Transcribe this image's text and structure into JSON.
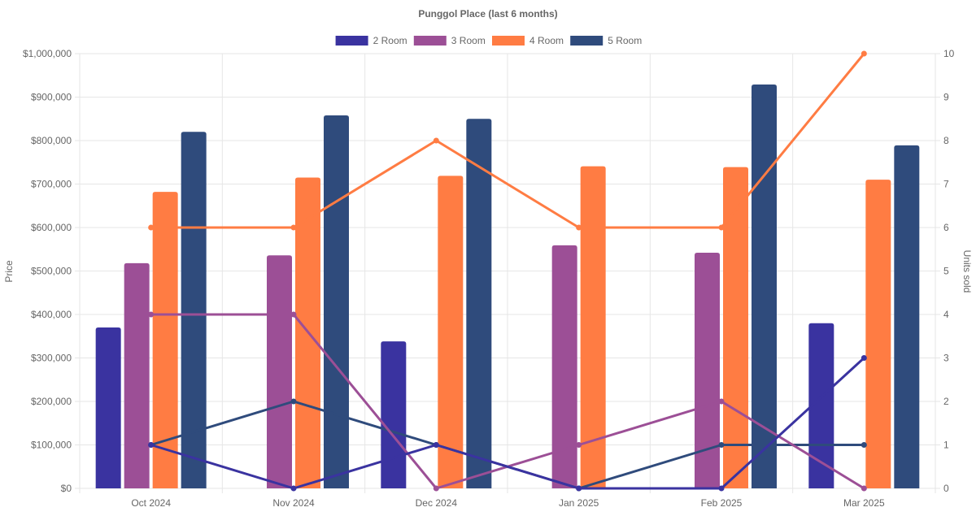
{
  "chart_data": {
    "type": "bar+line",
    "title": "Punggol Place (last 6 months)",
    "categories": [
      "Oct 2024",
      "Nov 2024",
      "Dec 2024",
      "Jan 2025",
      "Feb 2025",
      "Mar 2025"
    ],
    "ylabel_left": "Price",
    "ylabel_right": "Units sold",
    "ylim_left": [
      0,
      1000000
    ],
    "ylim_right": [
      0,
      10
    ],
    "yticks_left": [
      "$0",
      "$100,000",
      "$200,000",
      "$300,000",
      "$400,000",
      "$500,000",
      "$600,000",
      "$700,000",
      "$800,000",
      "$900,000",
      "$1,000,000"
    ],
    "yticks_right": [
      "0",
      "1",
      "2",
      "3",
      "4",
      "5",
      "6",
      "7",
      "8",
      "9",
      "10"
    ],
    "legend_position": "top-center",
    "grid": true,
    "series": [
      {
        "name": "2 Room",
        "color": "#3a33a0",
        "price": [
          370000,
          null,
          338000,
          null,
          null,
          380000
        ],
        "units": [
          1,
          0,
          1,
          0,
          0,
          3
        ]
      },
      {
        "name": "3 Room",
        "color": "#9c4f96",
        "price": [
          518000,
          536000,
          null,
          559000,
          542000,
          null
        ],
        "units": [
          4,
          4,
          0,
          1,
          2,
          0
        ]
      },
      {
        "name": "4 Room",
        "color": "#ff7c43",
        "price": [
          682000,
          715000,
          719000,
          741000,
          739000,
          710000
        ],
        "units": [
          6,
          6,
          8,
          6,
          6,
          10
        ]
      },
      {
        "name": "5 Room",
        "color": "#2f4b7c",
        "price": [
          820000,
          858000,
          850000,
          null,
          929000,
          789000
        ],
        "units": [
          1,
          2,
          1,
          0,
          1,
          1
        ]
      }
    ]
  }
}
